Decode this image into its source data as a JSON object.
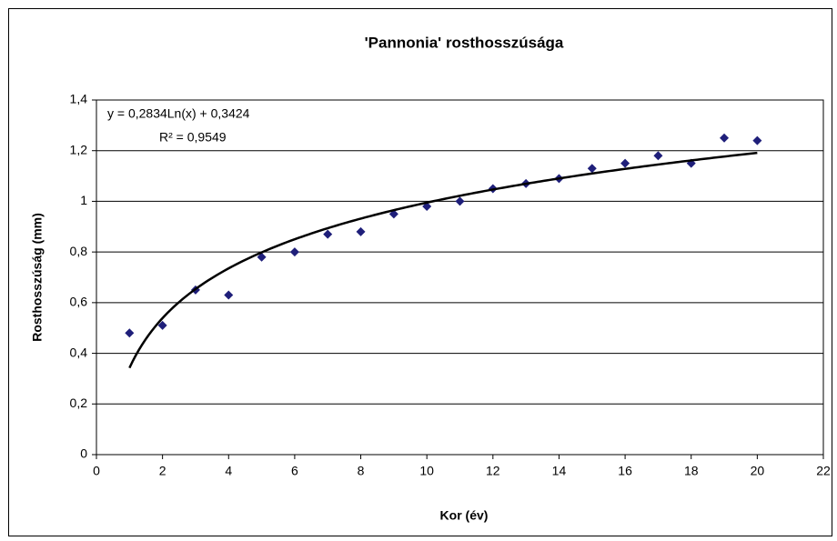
{
  "chart_data": {
    "type": "scatter",
    "title": "'Pannonia' rosthosszúsága",
    "x_label": "Kor (év)",
    "y_label": "Rosthosszúság (mm)",
    "x": [
      1,
      2,
      3,
      4,
      5,
      6,
      7,
      8,
      9,
      10,
      11,
      12,
      13,
      14,
      15,
      16,
      17,
      18,
      19,
      20
    ],
    "series": [
      {
        "color": "#1f1f7a",
        "values": [
          0.48,
          0.51,
          0.65,
          0.63,
          0.78,
          0.8,
          0.87,
          0.88,
          0.95,
          0.98,
          1.0,
          1.05,
          1.07,
          1.09,
          1.13,
          1.15,
          1.18,
          1.15,
          1.25,
          1.24
        ]
      }
    ],
    "trendline": {
      "type": "logarithmic",
      "coefficients": [
        0.2834,
        0.3424
      ],
      "color": "#000000",
      "equation": "y = 0,2834Ln(x) + 0,3424",
      "r_squared": "R² = 0,9549"
    },
    "xlim": [
      0,
      22
    ],
    "xticks": [
      0,
      2,
      4,
      6,
      8,
      10,
      12,
      14,
      16,
      18,
      20,
      22
    ],
    "ylim": [
      0,
      1.4
    ],
    "yticks": [
      0,
      {
        "value": 0.2,
        "label": "0,2"
      },
      {
        "value": 0.4,
        "label": "0,4"
      },
      {
        "value": 0.6,
        "label": "0,6"
      },
      {
        "value": 0.8,
        "label": "0,8"
      },
      1,
      {
        "value": 1.2,
        "label": "1,2"
      },
      {
        "value": 1.4,
        "label": "1,4"
      }
    ],
    "grid": true
  }
}
